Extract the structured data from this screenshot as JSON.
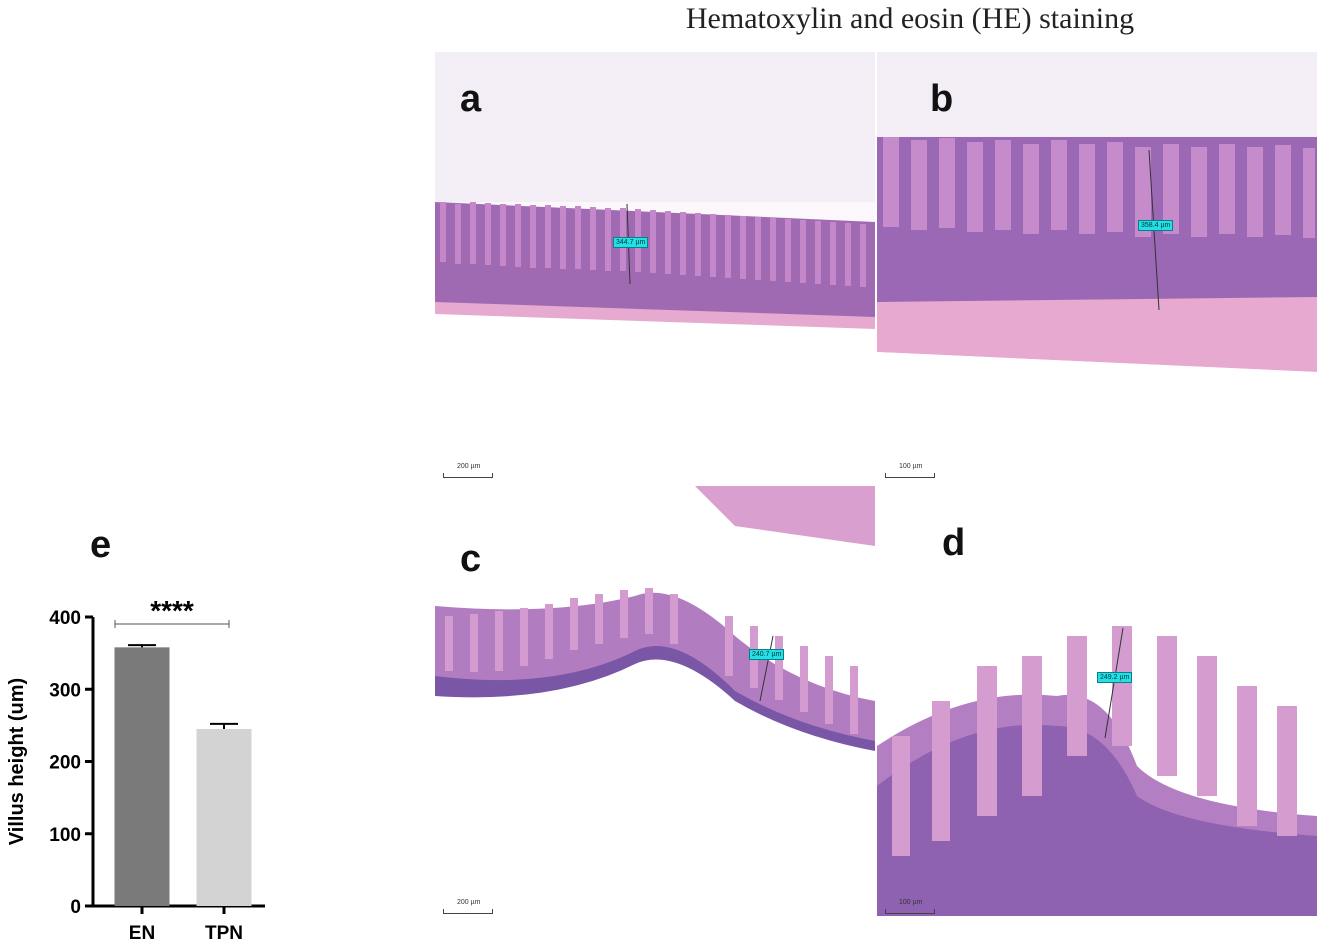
{
  "figure": {
    "title": "Hematoxylin and eosin (HE) staining",
    "panels": [
      {
        "letter": "a",
        "measurement": "344.7 µm",
        "scalebar": "200 µm"
      },
      {
        "letter": "b",
        "measurement": "358.4 µm",
        "scalebar": "100 µm"
      },
      {
        "letter": "c",
        "measurement": "240.7 µm",
        "scalebar": "200 µm"
      },
      {
        "letter": "d",
        "measurement": "249.2 µm",
        "scalebar": "100 µm"
      }
    ],
    "chart_letter": "e"
  },
  "chart_data": {
    "type": "bar",
    "categories": [
      "EN",
      "TPN"
    ],
    "values": [
      358,
      245
    ],
    "errors": [
      3,
      7
    ],
    "ylabel": "Villus height (um)",
    "ylim": [
      0,
      400
    ],
    "yticks": [
      0,
      100,
      200,
      300,
      400
    ],
    "colors": [
      "#7a7a7a",
      "#d3d3d3"
    ],
    "significance": "****",
    "grid": false
  }
}
